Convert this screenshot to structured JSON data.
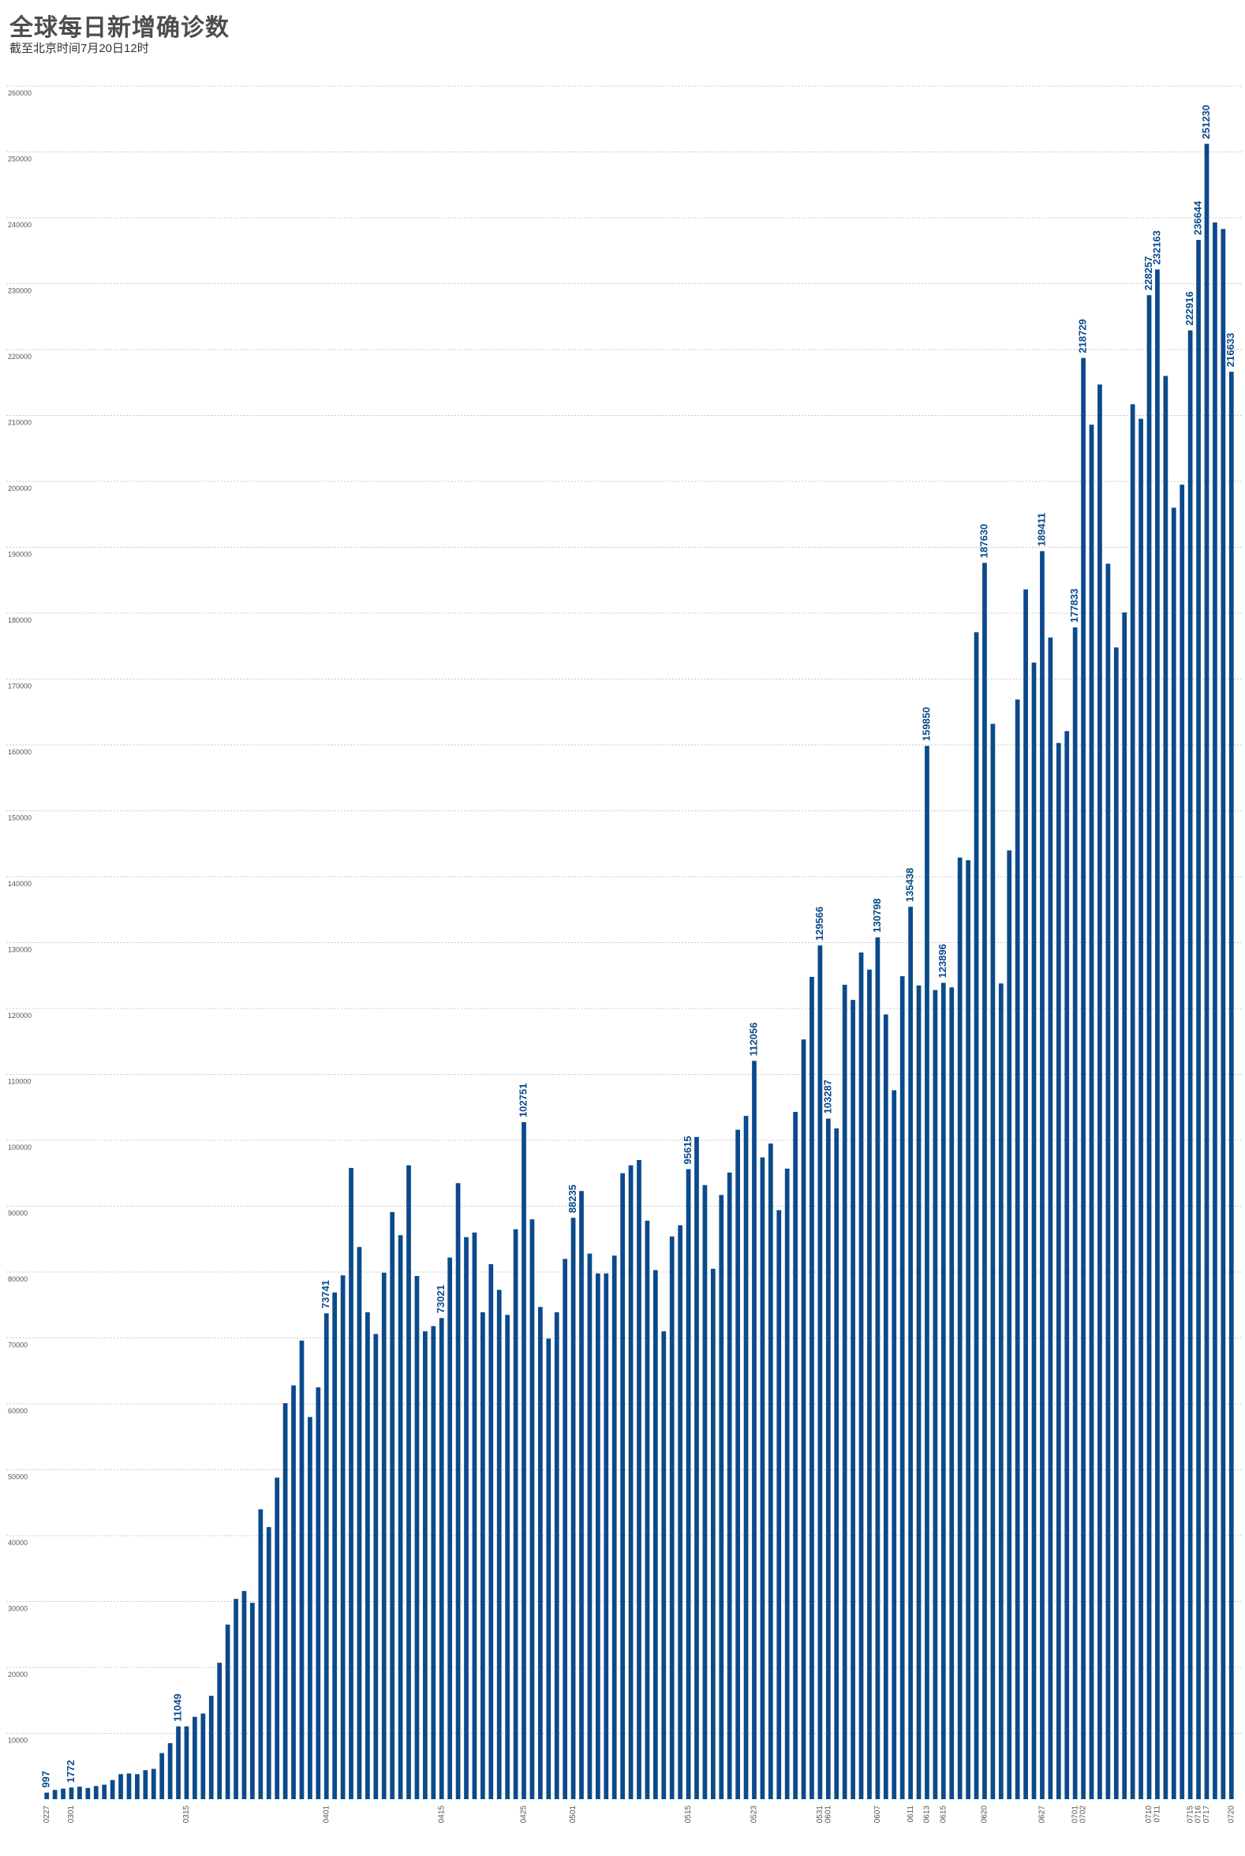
{
  "title": "全球每日新增确诊数",
  "subtitle": "截至北京时间7月20日12时",
  "colors": {
    "bar": "#0b4a8b",
    "label": "#0b4a8b",
    "grid": "#c8c8c8",
    "tick": "#555555"
  },
  "chart_data": {
    "type": "bar",
    "title": "全球每日新增确诊数",
    "subtitle": "截至北京时间7月20日12时",
    "xlabel": "",
    "ylabel": "",
    "ylim": [
      0,
      260000
    ],
    "yticks": [
      10000,
      20000,
      30000,
      40000,
      50000,
      60000,
      70000,
      80000,
      90000,
      100000,
      110000,
      120000,
      130000,
      140000,
      150000,
      160000,
      170000,
      180000,
      190000,
      200000,
      210000,
      220000,
      230000,
      240000,
      250000,
      260000
    ],
    "grid": true,
    "x_ticks": [
      {
        "index": 0,
        "label": "0227"
      },
      {
        "index": 3,
        "label": "0301"
      },
      {
        "index": 17,
        "label": "0315"
      },
      {
        "index": 34,
        "label": "0401"
      },
      {
        "index": 48,
        "label": "0415"
      },
      {
        "index": 58,
        "label": "0425"
      },
      {
        "index": 64,
        "label": "0501"
      },
      {
        "index": 78,
        "label": "0515"
      },
      {
        "index": 86,
        "label": "0523"
      },
      {
        "index": 94,
        "label": "0531"
      },
      {
        "index": 95,
        "label": "0601"
      },
      {
        "index": 101,
        "label": "0607"
      },
      {
        "index": 105,
        "label": "0611"
      },
      {
        "index": 107,
        "label": "0613"
      },
      {
        "index": 109,
        "label": "0615"
      },
      {
        "index": 114,
        "label": "0620"
      },
      {
        "index": 121,
        "label": "0627"
      },
      {
        "index": 125,
        "label": "0701"
      },
      {
        "index": 126,
        "label": "0702"
      },
      {
        "index": 134,
        "label": "0710"
      },
      {
        "index": 135,
        "label": "0711"
      },
      {
        "index": 139,
        "label": "0715"
      },
      {
        "index": 140,
        "label": "0716"
      },
      {
        "index": 141,
        "label": "0717"
      },
      {
        "index": 144,
        "label": "0720"
      }
    ],
    "values": [
      997,
      1400,
      1600,
      1772,
      1900,
      1700,
      2000,
      2200,
      2900,
      3800,
      3900,
      3800,
      4400,
      4600,
      7000,
      8500,
      11049,
      11049,
      12500,
      13000,
      15700,
      20700,
      26500,
      30400,
      31600,
      29800,
      44000,
      41300,
      48800,
      60100,
      62800,
      69600,
      58000,
      62500,
      73741,
      76900,
      79500,
      95800,
      83800,
      73900,
      70600,
      79900,
      89100,
      85600,
      96200,
      79400,
      71000,
      71800,
      73021,
      82200,
      93500,
      85300,
      86000,
      73900,
      81200,
      77300,
      73500,
      86500,
      102751,
      88000,
      74700,
      69900,
      73900,
      82000,
      88235,
      92300,
      82800,
      79800,
      79800,
      82500,
      95000,
      96200,
      97000,
      87800,
      80300,
      71000,
      85400,
      87100,
      95615,
      100500,
      93200,
      80500,
      91700,
      95100,
      101600,
      103700,
      112056,
      97400,
      99500,
      89400,
      95700,
      104300,
      115300,
      124800,
      129566,
      103287,
      101800,
      123600,
      121300,
      128500,
      125900,
      130798,
      119100,
      107600,
      124900,
      135438,
      123500,
      159850,
      122800,
      123896,
      123200,
      142900,
      142500,
      177100,
      187630,
      163200,
      123800,
      144000,
      166900,
      183600,
      172500,
      189411,
      176300,
      160300,
      162100,
      177833,
      218729,
      208600,
      214700,
      187500,
      174800,
      180100,
      211700,
      209500,
      228257,
      232163,
      216000,
      196000,
      199500,
      222916,
      236644,
      251230,
      239300,
      238300,
      216633
    ],
    "data_labels": [
      {
        "index": 0,
        "text": "997"
      },
      {
        "index": 3,
        "text": "1772"
      },
      {
        "index": 16,
        "text": "11049"
      },
      {
        "index": 34,
        "text": "73741"
      },
      {
        "index": 48,
        "text": "73021"
      },
      {
        "index": 58,
        "text": "102751"
      },
      {
        "index": 64,
        "text": "88235"
      },
      {
        "index": 78,
        "text": "95615"
      },
      {
        "index": 86,
        "text": "112056"
      },
      {
        "index": 94,
        "text": "129566"
      },
      {
        "index": 95,
        "text": "103287"
      },
      {
        "index": 101,
        "text": "130798"
      },
      {
        "index": 105,
        "text": "135438"
      },
      {
        "index": 107,
        "text": "159850"
      },
      {
        "index": 109,
        "text": "123896"
      },
      {
        "index": 114,
        "text": "187630"
      },
      {
        "index": 121,
        "text": "189411"
      },
      {
        "index": 125,
        "text": "177833"
      },
      {
        "index": 126,
        "text": "218729"
      },
      {
        "index": 134,
        "text": "228257"
      },
      {
        "index": 135,
        "text": "232163"
      },
      {
        "index": 139,
        "text": "222916"
      },
      {
        "index": 140,
        "text": "236644"
      },
      {
        "index": 141,
        "text": "251230"
      },
      {
        "index": 144,
        "text": "216633"
      }
    ]
  }
}
